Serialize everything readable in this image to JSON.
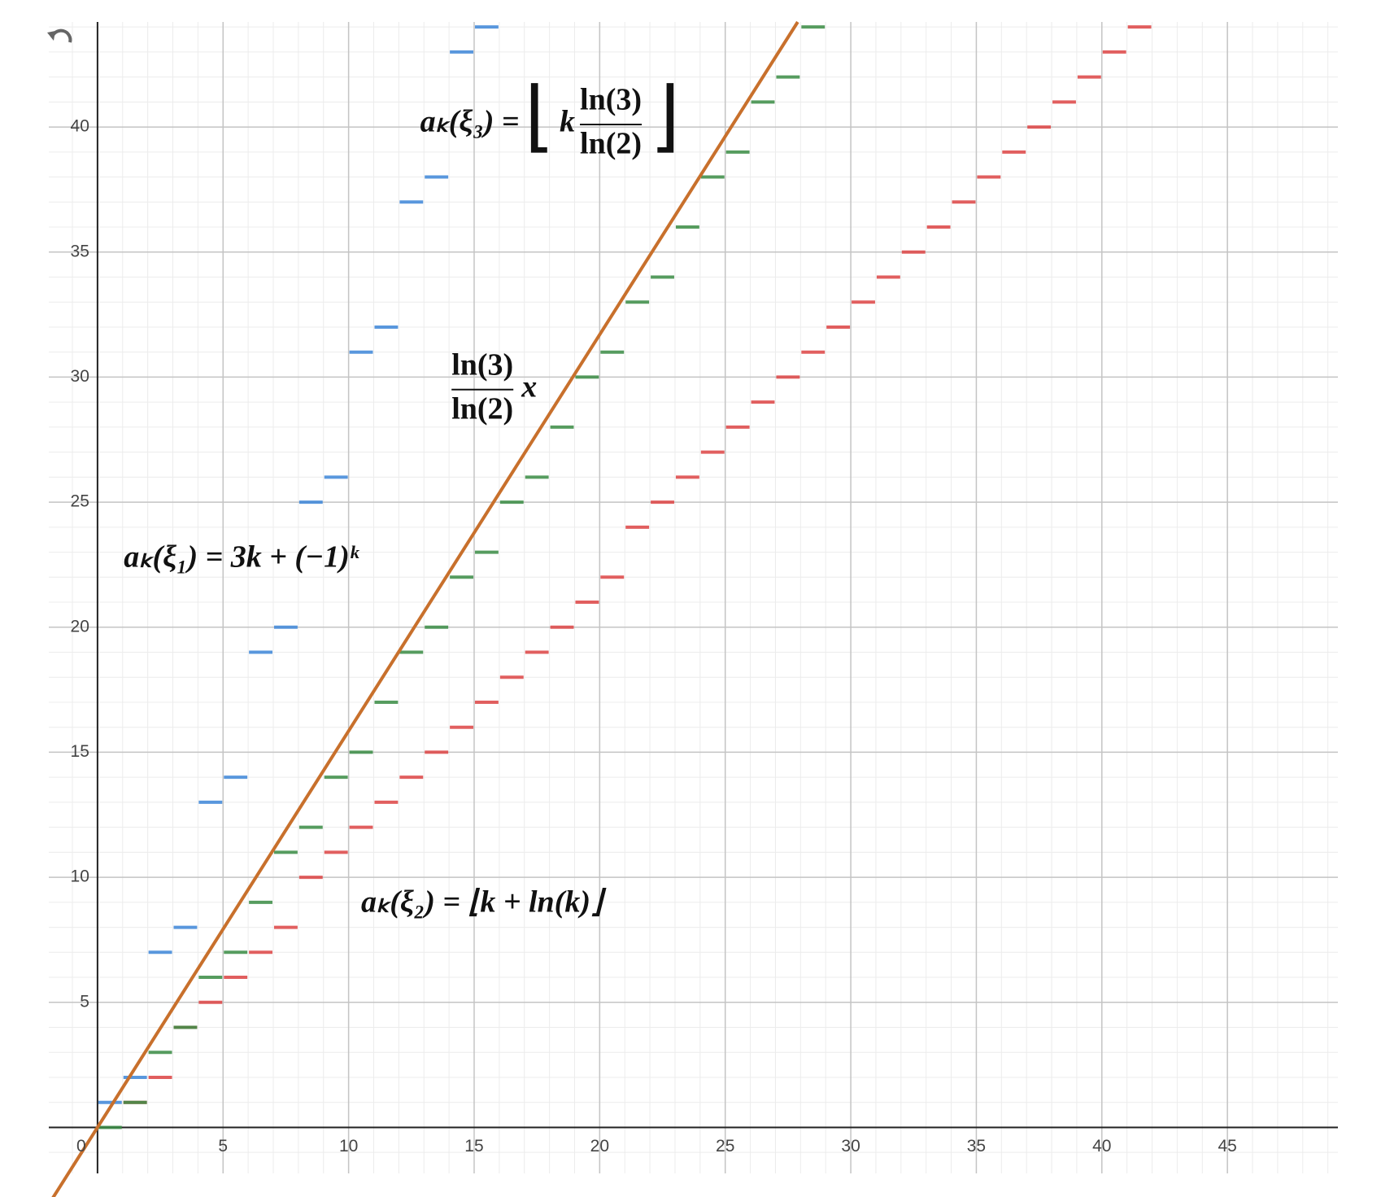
{
  "chart_data": {
    "type": "step",
    "xlim": [
      -1.94,
      49.4
    ],
    "ylim": [
      -1.84,
      44.2
    ],
    "xticks": [
      0,
      5,
      10,
      15,
      20,
      25,
      30,
      35,
      40,
      45
    ],
    "yticks": [
      5,
      10,
      15,
      20,
      25,
      30,
      35,
      40
    ],
    "grid": true,
    "minor_grid_step": 1,
    "series": [
      {
        "color": "#3d86d8",
        "x": [
          0,
          1,
          2,
          3,
          4,
          5,
          6,
          7,
          8,
          9,
          10,
          11,
          12,
          13,
          14,
          15
        ],
        "values": [
          1,
          2,
          7,
          8,
          13,
          14,
          19,
          20,
          25,
          26,
          31,
          32,
          37,
          38,
          43,
          44
        ]
      },
      {
        "color": "#dd4444",
        "x": [
          1,
          2,
          3,
          4,
          5,
          6,
          7,
          8,
          9,
          10,
          11,
          12,
          13,
          14,
          15,
          16,
          17,
          18,
          19,
          20,
          21,
          22,
          23,
          24,
          25,
          26,
          27,
          28,
          29,
          30,
          31,
          32,
          33,
          34,
          35,
          36,
          37,
          38,
          39,
          40,
          41
        ],
        "values": [
          1,
          2,
          4,
          5,
          6,
          7,
          8,
          10,
          11,
          12,
          13,
          14,
          15,
          16,
          17,
          18,
          19,
          20,
          21,
          22,
          24,
          25,
          26,
          27,
          28,
          29,
          30,
          31,
          32,
          33,
          34,
          35,
          36,
          37,
          38,
          39,
          40,
          41,
          42,
          43,
          44
        ]
      },
      {
        "color": "#3a8c44",
        "x": [
          0,
          1,
          2,
          3,
          4,
          5,
          6,
          7,
          8,
          9,
          10,
          11,
          12,
          13,
          14,
          15,
          16,
          17,
          18,
          19,
          20,
          21,
          22,
          23,
          24,
          25,
          26,
          27,
          28
        ],
        "values": [
          0,
          1,
          3,
          4,
          6,
          7,
          9,
          11,
          12,
          14,
          15,
          17,
          19,
          20,
          22,
          23,
          25,
          26,
          28,
          30,
          31,
          33,
          34,
          36,
          38,
          39,
          41,
          42,
          44
        ]
      }
    ],
    "line": {
      "color": "#c8702c",
      "slope": 1.584962500721156
    },
    "annotations": [
      {
        "before": "aₖ(ξ₃) = ",
        "open": "⌊",
        "factor": "k",
        "numerator": "ln(3)",
        "denominator": "ln(2)",
        "close": "⌋"
      },
      {
        "numerator": "ln(3)",
        "denominator": "ln(2)",
        "after": "x"
      },
      {
        "before": "aₖ(ξ₁) = 3k + (−1)ᵏ"
      },
      {
        "before": "aₖ(ξ₂) = ⌊k + ln(k)⌋"
      }
    ]
  }
}
